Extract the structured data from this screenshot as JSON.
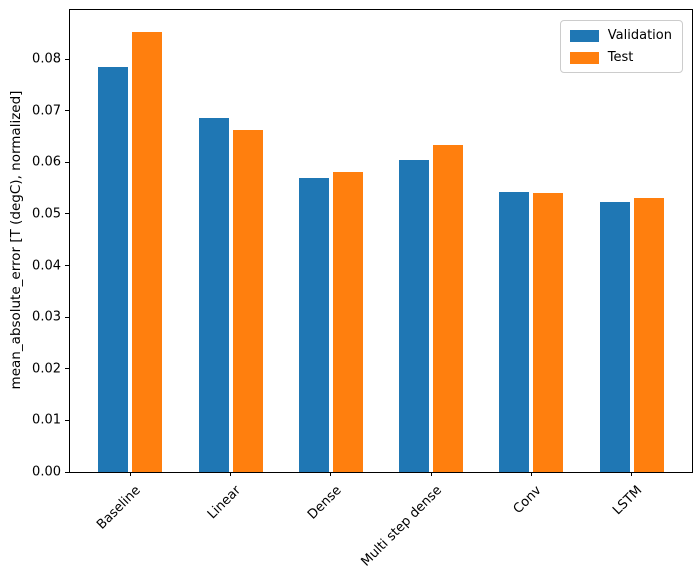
{
  "chart_data": {
    "type": "bar",
    "title": "",
    "xlabel": "",
    "ylabel": "mean_absolute_error [T (degC), normalized]",
    "categories": [
      "Baseline",
      "Linear",
      "Dense",
      "Multi step dense",
      "Conv",
      "LSTM"
    ],
    "series": [
      {
        "name": "Validation",
        "color": "#1f77b4",
        "offset": -0.17,
        "values": [
          0.0785,
          0.0686,
          0.057,
          0.0605,
          0.0543,
          0.0523
        ]
      },
      {
        "name": "Test",
        "color": "#ff7f0e",
        "offset": 0.17,
        "values": [
          0.0852,
          0.0663,
          0.0582,
          0.0633,
          0.0541,
          0.0531
        ]
      }
    ],
    "bar_width": 0.3,
    "ylim": [
      0,
      0.0895
    ],
    "xlim": [
      -0.602,
      5.602
    ],
    "yticks": [
      0.0,
      0.01,
      0.02,
      0.03,
      0.04,
      0.05,
      0.06,
      0.07,
      0.08
    ],
    "ytick_labels": [
      "0.00",
      "0.01",
      "0.02",
      "0.03",
      "0.04",
      "0.05",
      "0.06",
      "0.07",
      "0.08"
    ],
    "xtick_rotation_deg": 45,
    "grid": false,
    "legend": {
      "position": "upper right",
      "entries": [
        "Validation",
        "Test"
      ]
    }
  }
}
